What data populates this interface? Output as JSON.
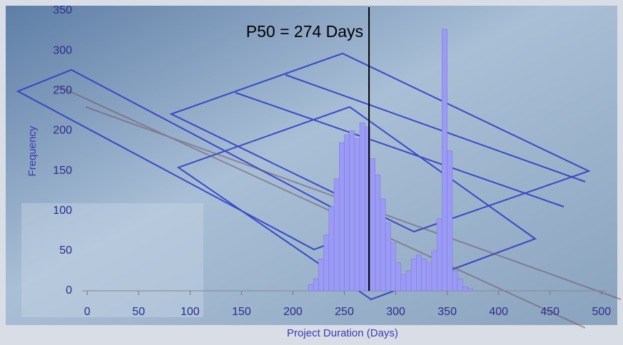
{
  "chart_data": {
    "type": "histogram",
    "xlabel": "Project Duration (Days)",
    "ylabel": "Frequency",
    "bins": [
      215,
      220,
      225,
      230,
      235,
      240,
      245,
      250,
      255,
      260,
      265,
      270,
      275,
      280,
      285,
      290,
      295,
      300,
      305,
      310,
      315,
      320,
      325,
      330,
      335,
      340,
      345,
      350,
      355,
      360,
      365,
      370,
      375
    ],
    "values": [
      8,
      15,
      40,
      70,
      105,
      140,
      185,
      195,
      200,
      190,
      210,
      205,
      165,
      145,
      115,
      85,
      60,
      35,
      20,
      25,
      40,
      45,
      40,
      35,
      50,
      90,
      327,
      175,
      25,
      15,
      5,
      3
    ],
    "color": "#9b9bf5",
    "xlim": [
      -5,
      505
    ],
    "xticks": [
      0,
      50,
      100,
      150,
      200,
      250,
      300,
      350,
      400,
      450,
      500
    ],
    "ylim": [
      0,
      350
    ],
    "yticks": [
      0,
      50,
      100,
      150,
      200,
      250,
      300,
      350
    ],
    "grid": false,
    "annotation": {
      "text": "P50 = 274 Days",
      "x": 274
    }
  }
}
